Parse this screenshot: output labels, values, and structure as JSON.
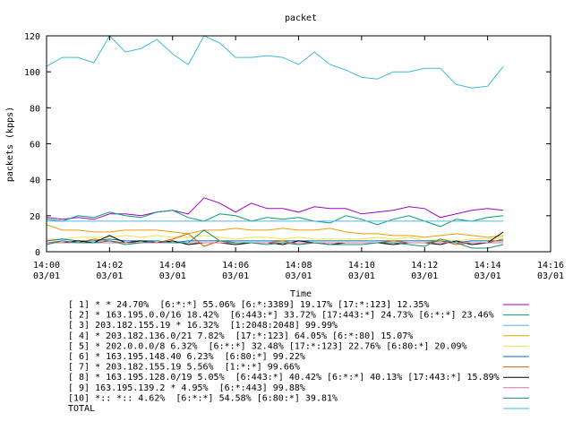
{
  "chart_data": {
    "type": "line",
    "title": "packet",
    "xlabel": "Time",
    "ylabel": "packets (kpps)",
    "ylim": [
      0,
      120
    ],
    "yticks": [
      0,
      20,
      40,
      60,
      80,
      100,
      120
    ],
    "grid": false,
    "legend_position": "bottom",
    "xticks": [
      {
        "time": "14:00",
        "date": "03/01",
        "minute": 0
      },
      {
        "time": "14:02",
        "date": "03/01",
        "minute": 2
      },
      {
        "time": "14:04",
        "date": "03/01",
        "minute": 4
      },
      {
        "time": "14:06",
        "date": "03/01",
        "minute": 6
      },
      {
        "time": "14:08",
        "date": "03/01",
        "minute": 8
      },
      {
        "time": "14:10",
        "date": "03/01",
        "minute": 10
      },
      {
        "time": "14:12",
        "date": "03/01",
        "minute": 12
      },
      {
        "time": "14:14",
        "date": "03/01",
        "minute": 14
      },
      {
        "time": "14:16",
        "date": "03/01",
        "minute": 16
      }
    ],
    "x": [
      0,
      0.5,
      1,
      1.5,
      2,
      2.5,
      3,
      3.5,
      4,
      4.5,
      5,
      5.5,
      6,
      6.5,
      7,
      7.5,
      8,
      8.5,
      9,
      9.5,
      10,
      10.5,
      11,
      11.5,
      12,
      12.5,
      13,
      13.5,
      14,
      14.5
    ],
    "series": [
      {
        "name": "[ 1] * * 24.70%  [6:*:*] 55.06% [6:*:3389] 19.17% [17:*:123] 12.35%",
        "color": "#a000c8",
        "values": [
          19,
          18,
          19,
          18,
          21,
          21,
          20,
          22,
          23,
          21,
          30,
          27,
          22,
          27,
          24,
          24,
          22,
          25,
          24,
          24,
          21,
          22,
          23,
          25,
          24,
          19,
          21,
          23,
          24,
          23
        ]
      },
      {
        "name": "[ 2] * 163.195.0.0/16 18.42%  [6:443:*] 33.72% [17:443:*] 24.73% [6:*:*] 23.46%",
        "color": "#009e73",
        "values": [
          18,
          17,
          20,
          19,
          22,
          20,
          19,
          22,
          23,
          19,
          17,
          21,
          20,
          17,
          19,
          18,
          19,
          17,
          16,
          20,
          18,
          15,
          18,
          20,
          17,
          14,
          18,
          17,
          19,
          20
        ]
      },
      {
        "name": "[ 3] 203.182.155.19 * 16.32%  [1:2048:2048] 99.99%",
        "color": "#56b4e9",
        "values": [
          17,
          17,
          17,
          17,
          17,
          17,
          17,
          17,
          17,
          17,
          17,
          17,
          17,
          17,
          17,
          17,
          17,
          17,
          17,
          17,
          17,
          17,
          17,
          17,
          17,
          17,
          17,
          17,
          17,
          17
        ]
      },
      {
        "name": "[ 4] * 203.182.136.0/21 7.82%  [17:*:123] 64.05% [6:*:80] 15.07%",
        "color": "#e69f00",
        "values": [
          15,
          12,
          12,
          11,
          11,
          12,
          12,
          12,
          11,
          10,
          12,
          12,
          13,
          12,
          12,
          13,
          12,
          12,
          13,
          11,
          10,
          10,
          9,
          9,
          8,
          9,
          10,
          9,
          8,
          9
        ]
      },
      {
        "name": "[ 5] * 202.0.0.0/8 6.32%  [6:*:*] 32.48% [17:*:123] 22.76% [6:80:*] 20.09%",
        "color": "#f0e442",
        "values": [
          7,
          7,
          8,
          8,
          8,
          9,
          8,
          9,
          8,
          8,
          9,
          8,
          7,
          8,
          8,
          7,
          8,
          7,
          7,
          7,
          7,
          8,
          7,
          8,
          6,
          7,
          6,
          7,
          7,
          8
        ]
      },
      {
        "name": "[ 6] * 163.195.148.40 6.23%  [6:80:*] 99.22%",
        "color": "#0072b2",
        "values": [
          6,
          7,
          6,
          6,
          7,
          6,
          6,
          6,
          5,
          6,
          6,
          6,
          6,
          6,
          6,
          6,
          6,
          6,
          6,
          6,
          6,
          6,
          6,
          6,
          6,
          6,
          5,
          6,
          6,
          6
        ]
      },
      {
        "name": "[ 7] * 203.182.155.19 5.56%  [1:*:*] 99.66%",
        "color": "#d55e00",
        "values": [
          5,
          6,
          5,
          7,
          6,
          5,
          6,
          5,
          7,
          10,
          3,
          6,
          5,
          5,
          5,
          6,
          4,
          5,
          5,
          5,
          5,
          5,
          6,
          5,
          5,
          6,
          4,
          5,
          5,
          7
        ]
      },
      {
        "name": "[ 8] * 163.195.128.0/19 5.05%  [6:443:*] 40.42% [6:*:*] 40.13% [17:443:*] 15.89%",
        "color": "#000000",
        "values": [
          5,
          5,
          6,
          5,
          9,
          5,
          6,
          5,
          6,
          4,
          5,
          5,
          4,
          5,
          5,
          4,
          6,
          5,
          4,
          5,
          5,
          5,
          4,
          5,
          5,
          4,
          6,
          4,
          5,
          11
        ]
      },
      {
        "name": "[ 9] 163.195.139.2 * 4.95%  [6:*:443] 99.88%",
        "color": "#cc79a7",
        "values": [
          5,
          5,
          5,
          5,
          5,
          5,
          5,
          5,
          5,
          5,
          5,
          5,
          5,
          5,
          5,
          5,
          5,
          5,
          5,
          5,
          5,
          5,
          5,
          5,
          5,
          5,
          5,
          5,
          5,
          5
        ]
      },
      {
        "name": "[10] *:: *:: 4.62%  [6:*:*] 54.58% [6:80:*] 39.81%",
        "color": "#1a8b7a",
        "values": [
          4,
          6,
          5,
          5,
          6,
          4,
          5,
          6,
          5,
          5,
          12,
          6,
          5,
          5,
          4,
          5,
          4,
          5,
          4,
          4,
          4,
          5,
          5,
          4,
          3,
          7,
          5,
          2,
          2,
          4
        ]
      },
      {
        "name": "TOTAL",
        "color": "#3fb8d8",
        "values": [
          103,
          108,
          108,
          105,
          120,
          111,
          113,
          118,
          110,
          104,
          120,
          116,
          108,
          108,
          109,
          108,
          104,
          111,
          104,
          101,
          97,
          96,
          100,
          100,
          102,
          102,
          93,
          91,
          92,
          103
        ]
      }
    ]
  }
}
